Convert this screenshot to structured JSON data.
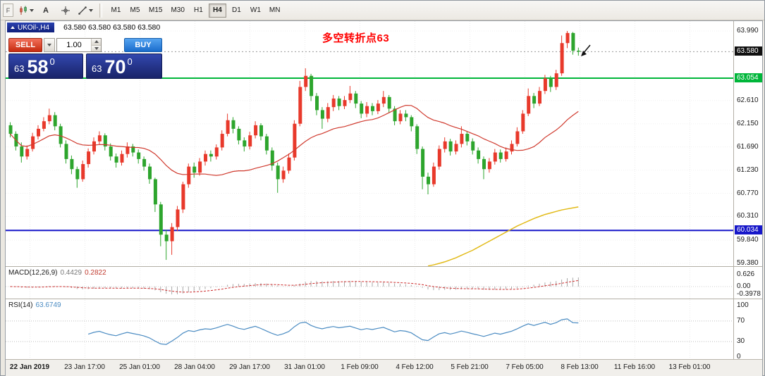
{
  "toolbar": {
    "handle_label": "F",
    "text_tool_label": "A",
    "timeframes": [
      {
        "label": "M1",
        "active": false
      },
      {
        "label": "M5",
        "active": false
      },
      {
        "label": "M15",
        "active": false
      },
      {
        "label": "M30",
        "active": false
      },
      {
        "label": "H1",
        "active": false
      },
      {
        "label": "H4",
        "active": true
      },
      {
        "label": "D1",
        "active": false
      },
      {
        "label": "W1",
        "active": false
      },
      {
        "label": "MN",
        "active": false
      }
    ]
  },
  "header": {
    "title": "UKOil-,H4",
    "quote_line": "63.580 63.580 63.580 63.580"
  },
  "trade_panel": {
    "sell_label": "SELL",
    "buy_label": "BUY",
    "lot_value": "1.00",
    "bid": {
      "whole": "63",
      "pips": "58",
      "pipette": "0"
    },
    "ask": {
      "whole": "63",
      "pips": "70",
      "pipette": "0"
    }
  },
  "annotation": {
    "text": "多空转折点63",
    "color": "#ff0000"
  },
  "chart_data": {
    "type": "candlestick",
    "symbol": "UKOil-",
    "timeframe": "H4",
    "price_axis_ticks": [
      "63.990",
      "62.610",
      "62.150",
      "61.690",
      "61.230",
      "60.770",
      "60.310",
      "59.840",
      "59.380"
    ],
    "current_price": {
      "label": "63.580",
      "value": 63.58
    },
    "hlines": [
      {
        "label": "63.054",
        "value": 63.054,
        "color": "#00b63a"
      },
      {
        "label": "60.034",
        "value": 60.034,
        "color": "#1717c9"
      }
    ],
    "colors": {
      "up": "#e8392b",
      "down": "#2da52d",
      "ma_red": "#d03a2e",
      "ma_yellow": "#e2ba17",
      "macd_bar": "#a9a9a9",
      "macd_signal": "#cc2a2a",
      "rsi_line": "#4a8bc2"
    },
    "candles": [
      [
        62.12,
        62.18,
        61.88,
        61.95
      ],
      [
        61.95,
        62.0,
        61.62,
        61.7
      ],
      [
        61.7,
        61.78,
        61.38,
        61.5
      ],
      [
        61.5,
        61.72,
        61.44,
        61.65
      ],
      [
        61.65,
        61.97,
        61.6,
        61.9
      ],
      [
        61.9,
        62.12,
        61.84,
        62.05
      ],
      [
        62.05,
        62.28,
        62.0,
        62.2
      ],
      [
        62.2,
        62.45,
        62.14,
        62.32
      ],
      [
        62.32,
        62.38,
        62.02,
        62.1
      ],
      [
        62.1,
        62.15,
        61.68,
        61.75
      ],
      [
        61.75,
        61.82,
        61.36,
        61.45
      ],
      [
        61.45,
        61.52,
        61.15,
        61.25
      ],
      [
        61.25,
        61.3,
        60.88,
        61.05
      ],
      [
        61.05,
        61.42,
        61.0,
        61.35
      ],
      [
        61.35,
        61.66,
        61.28,
        61.6
      ],
      [
        61.6,
        61.88,
        61.54,
        61.8
      ],
      [
        61.8,
        62.0,
        61.74,
        61.92
      ],
      [
        61.92,
        61.96,
        61.62,
        61.7
      ],
      [
        61.7,
        61.76,
        61.42,
        61.5
      ],
      [
        61.5,
        61.56,
        61.28,
        61.38
      ],
      [
        61.38,
        61.62,
        61.32,
        61.55
      ],
      [
        61.55,
        61.78,
        61.48,
        61.7
      ],
      [
        61.7,
        61.75,
        61.5,
        61.58
      ],
      [
        61.58,
        61.64,
        61.36,
        61.45
      ],
      [
        61.45,
        61.5,
        61.22,
        61.3
      ],
      [
        61.3,
        61.36,
        60.96,
        61.05
      ],
      [
        61.05,
        61.08,
        60.4,
        60.55
      ],
      [
        60.55,
        60.6,
        59.72,
        59.95
      ],
      [
        59.95,
        60.05,
        59.45,
        59.82
      ],
      [
        59.82,
        60.18,
        59.55,
        60.1
      ],
      [
        60.1,
        60.52,
        60.02,
        60.45
      ],
      [
        60.45,
        61.0,
        60.38,
        60.95
      ],
      [
        60.95,
        61.36,
        60.88,
        61.3
      ],
      [
        61.3,
        61.38,
        61.08,
        61.18
      ],
      [
        61.18,
        61.47,
        61.12,
        61.4
      ],
      [
        61.4,
        61.62,
        61.32,
        61.55
      ],
      [
        61.55,
        61.62,
        61.4,
        61.5
      ],
      [
        61.5,
        61.74,
        61.44,
        61.68
      ],
      [
        61.68,
        62.02,
        61.62,
        61.95
      ],
      [
        61.95,
        62.35,
        61.9,
        62.22
      ],
      [
        62.22,
        62.28,
        61.96,
        62.05
      ],
      [
        62.05,
        62.1,
        61.74,
        61.82
      ],
      [
        61.82,
        61.88,
        61.6,
        61.7
      ],
      [
        61.7,
        61.99,
        61.64,
        61.92
      ],
      [
        61.92,
        62.2,
        61.86,
        62.12
      ],
      [
        62.12,
        62.16,
        61.82,
        61.9
      ],
      [
        61.9,
        61.95,
        61.54,
        61.62
      ],
      [
        61.62,
        61.68,
        61.22,
        61.32
      ],
      [
        61.32,
        61.38,
        60.78,
        61.05
      ],
      [
        61.05,
        61.3,
        60.98,
        61.22
      ],
      [
        61.22,
        61.56,
        61.16,
        61.48
      ],
      [
        61.48,
        62.22,
        61.42,
        62.15
      ],
      [
        62.15,
        63.0,
        62.1,
        62.88
      ],
      [
        62.88,
        63.25,
        62.8,
        63.1
      ],
      [
        63.1,
        63.14,
        62.6,
        62.7
      ],
      [
        62.7,
        62.76,
        62.32,
        62.42
      ],
      [
        62.42,
        62.48,
        62.05,
        62.25
      ],
      [
        62.25,
        62.56,
        62.18,
        62.48
      ],
      [
        62.48,
        62.72,
        62.4,
        62.65
      ],
      [
        62.65,
        62.7,
        62.42,
        62.5
      ],
      [
        62.5,
        62.7,
        62.44,
        62.62
      ],
      [
        62.62,
        62.9,
        62.56,
        62.75
      ],
      [
        62.75,
        62.8,
        62.46,
        62.55
      ],
      [
        62.55,
        62.6,
        62.26,
        62.35
      ],
      [
        62.35,
        62.58,
        62.28,
        62.5
      ],
      [
        62.5,
        62.56,
        62.32,
        62.4
      ],
      [
        62.4,
        62.62,
        62.34,
        62.55
      ],
      [
        62.55,
        62.8,
        62.48,
        62.68
      ],
      [
        62.68,
        62.72,
        62.36,
        62.45
      ],
      [
        62.45,
        62.5,
        62.12,
        62.2
      ],
      [
        62.2,
        62.42,
        62.14,
        62.35
      ],
      [
        62.35,
        62.42,
        62.2,
        62.28
      ],
      [
        62.28,
        62.32,
        62.0,
        62.1
      ],
      [
        62.1,
        62.14,
        61.55,
        61.65
      ],
      [
        61.65,
        61.7,
        60.85,
        61.1
      ],
      [
        61.1,
        61.18,
        60.75,
        60.95
      ],
      [
        60.95,
        61.38,
        60.9,
        61.3
      ],
      [
        61.3,
        61.72,
        61.24,
        61.65
      ],
      [
        61.65,
        61.88,
        61.58,
        61.8
      ],
      [
        61.8,
        61.85,
        61.52,
        61.6
      ],
      [
        61.6,
        61.82,
        61.54,
        61.75
      ],
      [
        61.75,
        62.1,
        61.68,
        61.95
      ],
      [
        61.95,
        62.0,
        61.72,
        61.8
      ],
      [
        61.8,
        61.86,
        61.54,
        61.62
      ],
      [
        61.62,
        61.68,
        61.36,
        61.45
      ],
      [
        61.45,
        61.5,
        61.05,
        61.25
      ],
      [
        61.25,
        61.47,
        61.18,
        61.4
      ],
      [
        61.4,
        61.65,
        61.34,
        61.58
      ],
      [
        61.58,
        61.64,
        61.38,
        61.45
      ],
      [
        61.45,
        61.68,
        61.4,
        61.6
      ],
      [
        61.6,
        61.82,
        61.54,
        61.75
      ],
      [
        61.75,
        62.08,
        61.7,
        62.0
      ],
      [
        62.0,
        62.42,
        61.95,
        62.35
      ],
      [
        62.35,
        62.85,
        62.3,
        62.7
      ],
      [
        62.7,
        62.76,
        62.46,
        62.55
      ],
      [
        62.55,
        62.88,
        62.5,
        62.8
      ],
      [
        62.8,
        63.12,
        62.74,
        63.05
      ],
      [
        63.05,
        63.1,
        62.78,
        62.88
      ],
      [
        62.88,
        63.22,
        62.82,
        63.15
      ],
      [
        63.15,
        63.9,
        63.1,
        63.75
      ],
      [
        63.75,
        63.99,
        63.65,
        63.95
      ],
      [
        63.95,
        63.97,
        63.52,
        63.6
      ],
      [
        63.6,
        63.66,
        63.5,
        63.58
      ]
    ],
    "ma_red_period": 21,
    "ma_yellow": {
      "start_index": 75,
      "values": [
        59.33,
        59.35,
        59.38,
        59.41,
        59.45,
        59.49,
        59.54,
        59.59,
        59.64,
        59.7,
        59.76,
        59.82,
        59.88,
        59.94,
        60.0,
        60.06,
        60.12,
        60.17,
        60.22,
        60.27,
        60.31,
        60.35,
        60.38,
        60.41,
        60.44,
        60.46,
        60.48,
        60.5
      ]
    },
    "macd": {
      "title": "MACD(12,26,9)",
      "value_main": "0.4429",
      "value_signal": "0.2822",
      "fast": 12,
      "slow": 26,
      "signal": 9,
      "axis": [
        {
          "label": "0.626",
          "value": 0.626
        },
        {
          "label": "0.00",
          "value": 0
        },
        {
          "label": "-0.3978",
          "value": -0.3978
        }
      ]
    },
    "rsi": {
      "title": "RSI(14)",
      "value": "63.6749",
      "period": 14,
      "levels": [
        70,
        30
      ],
      "axis": [
        {
          "label": "100",
          "value": 100
        },
        {
          "label": "70",
          "value": 70
        },
        {
          "label": "30",
          "value": 30
        },
        {
          "label": "0",
          "value": 0
        }
      ]
    },
    "time_axis": [
      "22 Jan 2019",
      "23 Jan 17:00",
      "25 Jan 01:00",
      "28 Jan 04:00",
      "29 Jan 17:00",
      "31 Jan 01:00",
      "1 Feb 09:00",
      "4 Feb 12:00",
      "5 Feb 21:00",
      "7 Feb 05:00",
      "8 Feb 13:00",
      "11 Feb 16:00",
      "13 Feb 01:00"
    ]
  }
}
